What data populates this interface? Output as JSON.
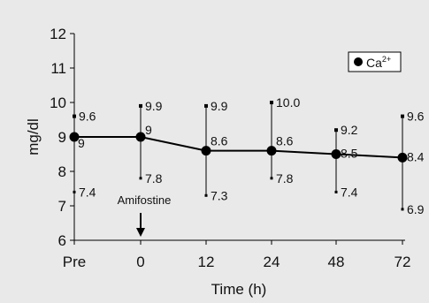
{
  "chart_data": {
    "type": "line",
    "categories": [
      "Pre",
      "0",
      "12",
      "24",
      "48",
      "72"
    ],
    "series": [
      {
        "name": "Ca2+",
        "values": [
          9,
          9,
          8.6,
          8.6,
          8.5,
          8.4
        ],
        "value_labels": [
          "9",
          "9",
          "8.6",
          "8.6",
          "8.5",
          "8.4"
        ],
        "upper": [
          9.6,
          9.9,
          9.9,
          10.0,
          9.2,
          9.6
        ],
        "upper_labels": [
          "9.6",
          "9.9",
          "9.9",
          "10.0",
          "9.2",
          "9.6"
        ],
        "lower": [
          7.4,
          7.8,
          7.3,
          7.8,
          7.4,
          6.9
        ],
        "lower_labels": [
          "7.4",
          "7.8",
          "7.3",
          "7.8",
          "7.4",
          "6.9"
        ]
      }
    ],
    "legend": {
      "base": "Ca",
      "sup": "2+",
      "position": "top-right"
    },
    "xlabel": "Time (h)",
    "ylabel": "mg/dl",
    "ylim": [
      6,
      12
    ],
    "yticks": [
      "6",
      "7",
      "8",
      "9",
      "10",
      "11",
      "12"
    ],
    "annotation": {
      "text": "Amifostine",
      "category": "0"
    },
    "grid": false,
    "colors": {
      "line": "#000000",
      "background": "#e9e9e9",
      "plot": "#e9e9e9"
    }
  }
}
